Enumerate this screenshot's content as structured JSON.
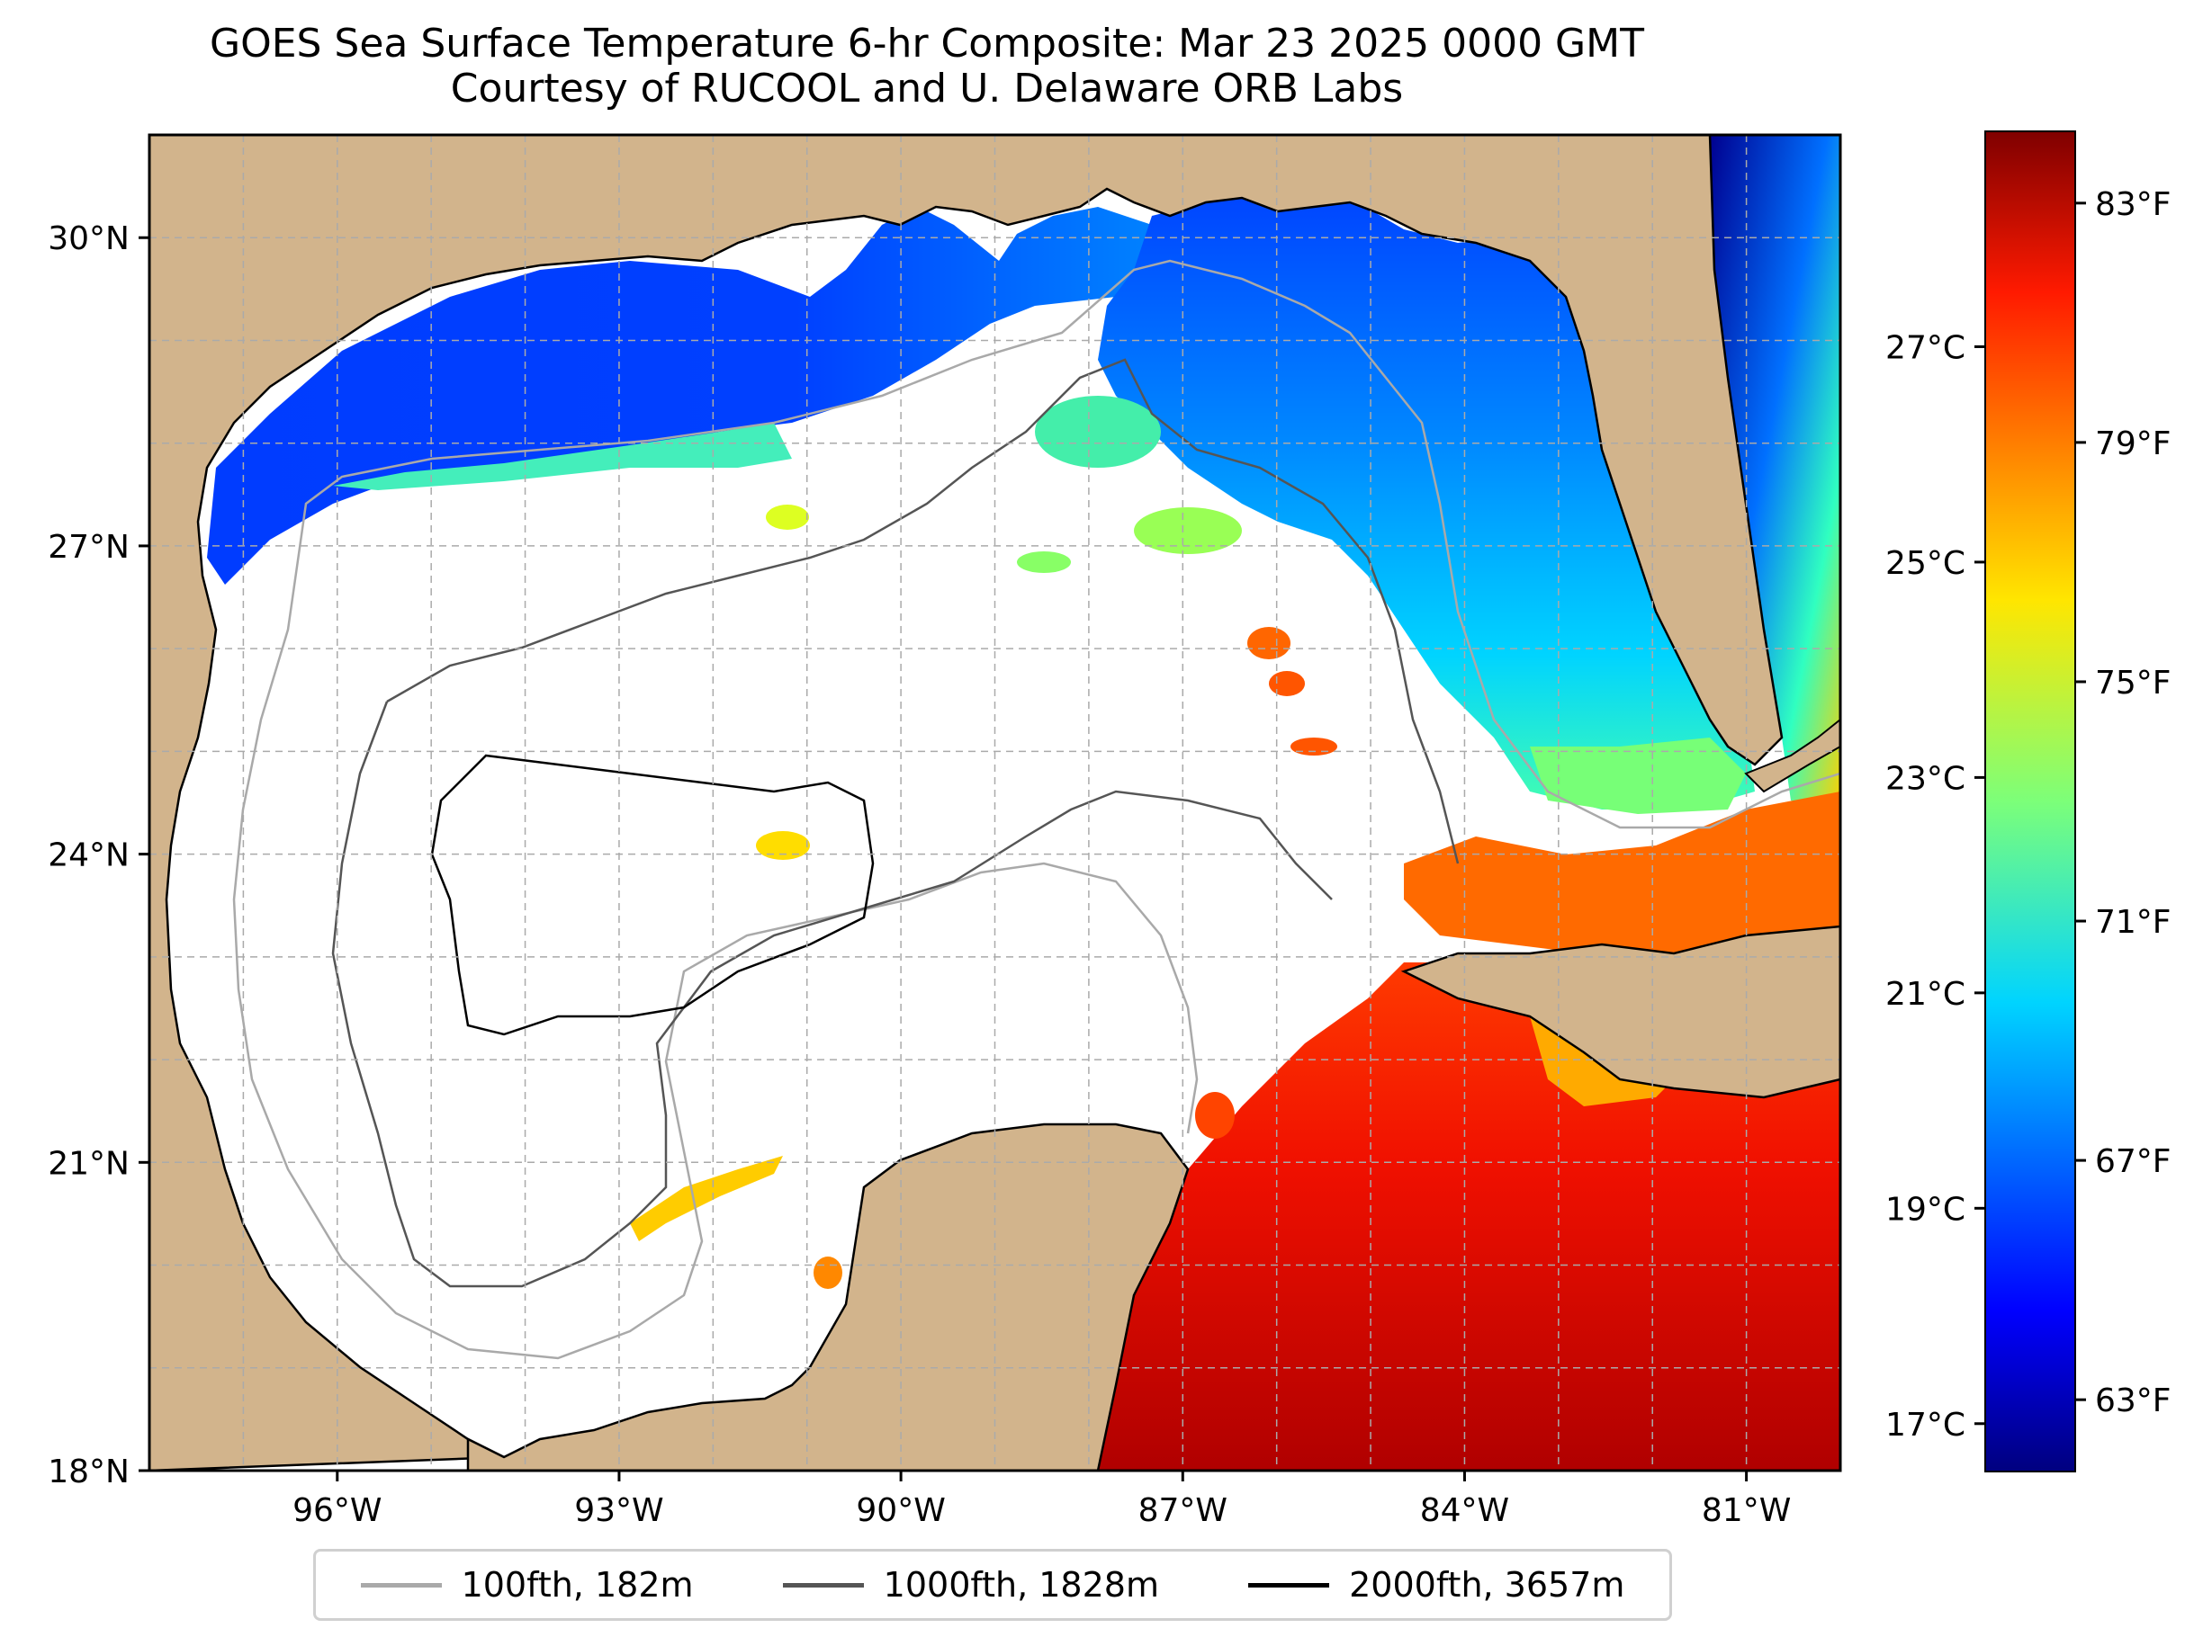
{
  "title": {
    "line1": "GOES Sea Surface Temperature 6-hr Composite: Mar 23 2025 0000 GMT",
    "line2": "Courtesy of RUCOOL and U. Delaware ORB Labs"
  },
  "map": {
    "lon_range": [
      -98,
      -80
    ],
    "lat_range": [
      18,
      31
    ],
    "lon_ticks": [
      {
        "value": -96,
        "label": "96°W"
      },
      {
        "value": -93,
        "label": "93°W"
      },
      {
        "value": -90,
        "label": "90°W"
      },
      {
        "value": -87,
        "label": "87°W"
      },
      {
        "value": -84,
        "label": "84°W"
      },
      {
        "value": -81,
        "label": "81°W"
      }
    ],
    "lat_ticks": [
      {
        "value": 30,
        "label": "30°N"
      },
      {
        "value": 27,
        "label": "27°N"
      },
      {
        "value": 24,
        "label": "24°N"
      },
      {
        "value": 21,
        "label": "21°N"
      },
      {
        "value": 18,
        "label": "18°N"
      }
    ],
    "land_color": "#d2b48c",
    "water_no_data_color": "#ffffff",
    "grid": true
  },
  "colorbar": {
    "colormap": "jet",
    "celsius_ticks": [
      {
        "value": 17,
        "label": "17°C"
      },
      {
        "value": 19,
        "label": "19°C"
      },
      {
        "value": 21,
        "label": "21°C"
      },
      {
        "value": 23,
        "label": "23°C"
      },
      {
        "value": 25,
        "label": "25°C"
      },
      {
        "value": 27,
        "label": "27°C"
      }
    ],
    "fahrenheit_ticks": [
      {
        "value": 63,
        "label": "63°F"
      },
      {
        "value": 67,
        "label": "67°F"
      },
      {
        "value": 71,
        "label": "71°F"
      },
      {
        "value": 75,
        "label": "75°F"
      },
      {
        "value": 79,
        "label": "79°F"
      },
      {
        "value": 83,
        "label": "83°F"
      }
    ],
    "range_f": [
      61.8,
      84.2
    ]
  },
  "legend": {
    "items": [
      {
        "label": "100fth, 182m",
        "color": "#a9a9a9"
      },
      {
        "label": "1000fth, 1828m",
        "color": "#555555"
      },
      {
        "label": "2000fth, 3657m",
        "color": "#000000"
      }
    ]
  }
}
